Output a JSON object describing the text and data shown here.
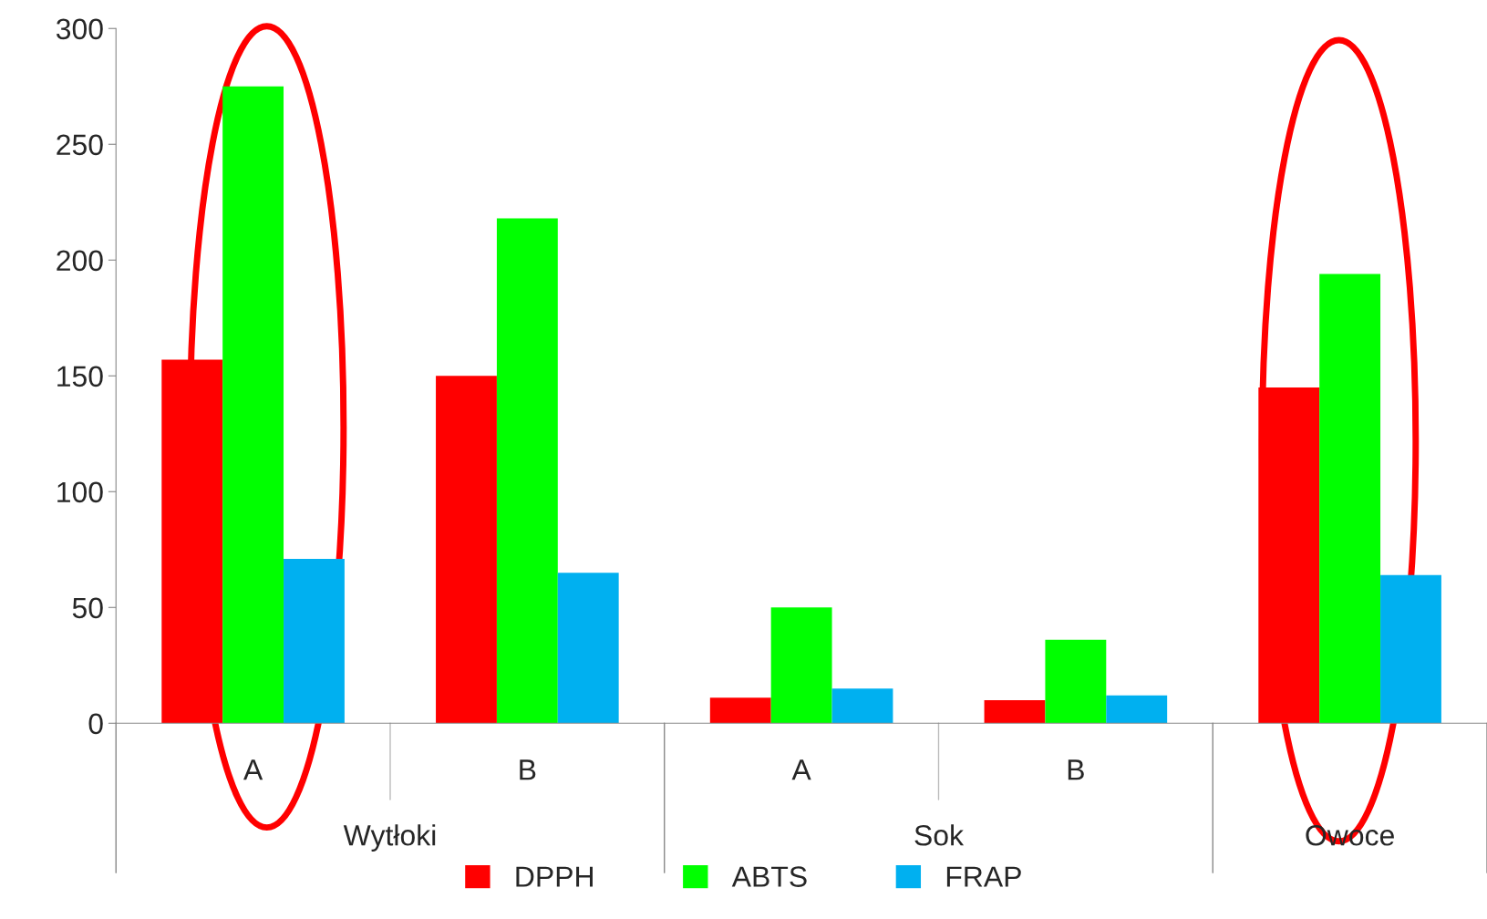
{
  "chart_data": {
    "type": "bar",
    "categories": [
      "A",
      "B",
      "A",
      "B",
      null
    ],
    "series": [
      {
        "name": "DPPH",
        "color": "#ff0000",
        "values": [
          157,
          150,
          11,
          10,
          145
        ]
      },
      {
        "name": "ABTS",
        "color": "#00ff00",
        "values": [
          275,
          218,
          50,
          36,
          194
        ]
      },
      {
        "name": "FRAP",
        "color": "#00b0f0",
        "values": [
          71,
          65,
          15,
          12,
          64
        ]
      }
    ],
    "annotations": [
      "Wytłoki",
      "Sok",
      "Owoce"
    ],
    "ylim": [
      0,
      300
    ],
    "yticks": [
      0,
      50,
      100,
      150,
      200,
      250,
      300
    ],
    "grid": false,
    "legend": "bottom"
  }
}
